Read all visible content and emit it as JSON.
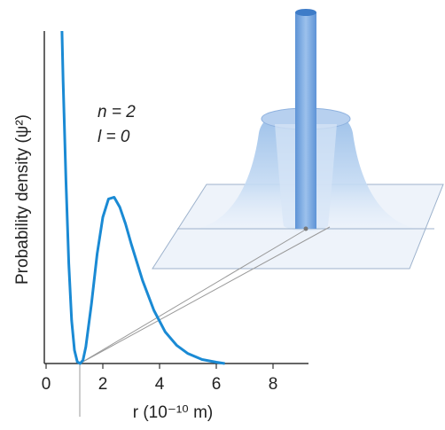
{
  "chart_data": {
    "type": "line",
    "y_label": "Probability density (ψ²)",
    "x_label": "r (10⁻¹⁰ m)",
    "annotations": [
      "n = 2",
      "l = 0"
    ],
    "x": [
      0.56,
      0.6,
      0.7,
      0.8,
      0.9,
      1.0,
      1.1,
      1.2,
      1.3,
      1.4,
      1.6,
      1.8,
      2.0,
      2.2,
      2.4,
      2.6,
      2.8,
      3.0,
      3.4,
      3.8,
      4.2,
      4.6,
      5.0,
      5.5,
      6.0,
      6.3
    ],
    "series": [
      {
        "color": "#1a8ad4",
        "values": [
          10,
          8.5,
          5.5,
          3.0,
          1.3,
          0.4,
          0.05,
          0,
          0.1,
          0.5,
          1.8,
          3.3,
          4.4,
          4.95,
          5.0,
          4.7,
          4.2,
          3.6,
          2.5,
          1.6,
          0.95,
          0.55,
          0.3,
          0.12,
          0.04,
          0
        ]
      }
    ],
    "xlim": [
      0,
      9.25
    ],
    "xticks": [
      0,
      2,
      4,
      6,
      8
    ],
    "ylim": [
      0,
      10
    ]
  }
}
